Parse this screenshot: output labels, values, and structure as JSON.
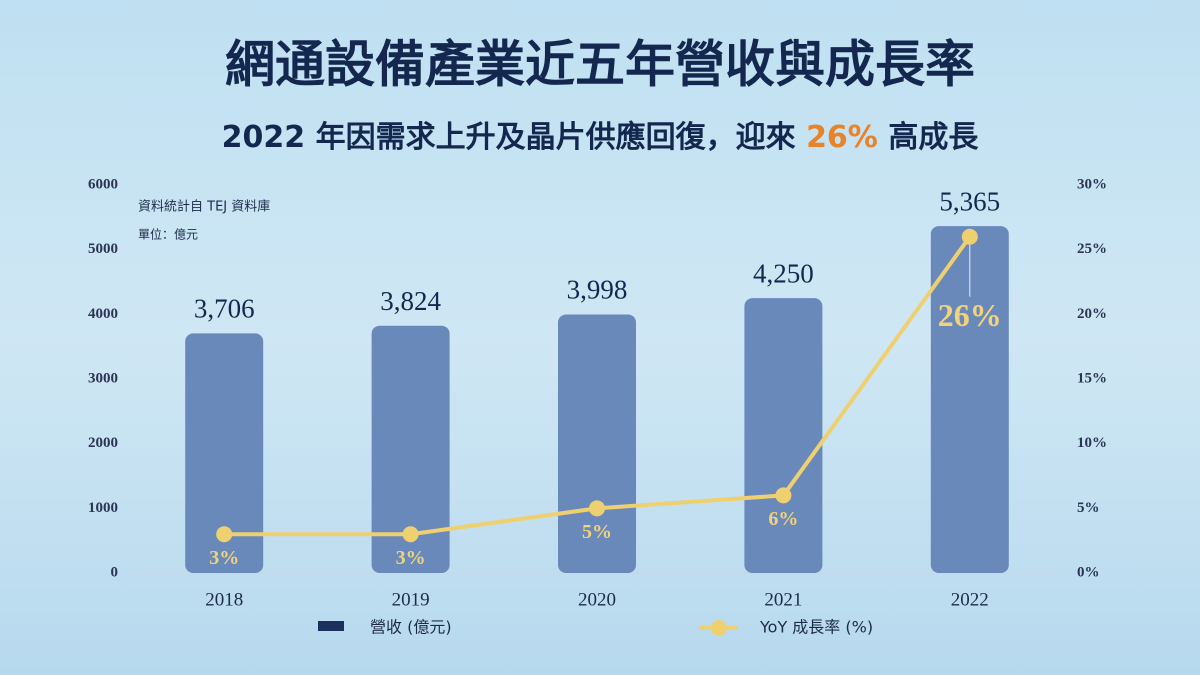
{
  "chart_data": {
    "type": "bar",
    "title": "網通設備產業近五年營收與成長率",
    "subtitle_parts": [
      "2022 年因需求上升及晶片供應回復，迎來 ",
      "26%",
      " 高成長"
    ],
    "highlight_color": "#e8832a",
    "source_note": "資料統計自 TEJ 資料庫",
    "unit_note": "單位：億元",
    "categories": [
      "2018",
      "2019",
      "2020",
      "2021",
      "2022"
    ],
    "series": [
      {
        "name": "營收 (億元)",
        "type": "bar",
        "color": "#6a89bb",
        "legend_color": "#1d2f5c",
        "values": [
          3706,
          3824,
          3998,
          4250,
          5365
        ],
        "value_labels": [
          "3,706",
          "3,824",
          "3,998",
          "4,250",
          "5,365"
        ]
      },
      {
        "name": "YoY 成長率 (%)",
        "type": "line",
        "axis": "y2",
        "color": "#efd070",
        "values": [
          3,
          3,
          5,
          6,
          26
        ],
        "value_labels": [
          "3%",
          "3%",
          "5%",
          "6%",
          "26%"
        ]
      }
    ],
    "ylim": [
      0,
      6000
    ],
    "yticks": [
      0,
      1000,
      2000,
      3000,
      4000,
      5000,
      6000
    ],
    "y2lim": [
      0,
      30
    ],
    "y2ticks": [
      {
        "value": 0,
        "label": "0%"
      },
      {
        "value": 5,
        "label": "5%"
      },
      {
        "value": 10,
        "label": "10%"
      },
      {
        "value": 15,
        "label": "15%"
      },
      {
        "value": 20,
        "label": "20%"
      },
      {
        "value": 25,
        "label": "25%"
      },
      {
        "value": 30,
        "label": "30%"
      }
    ],
    "grid": false
  }
}
